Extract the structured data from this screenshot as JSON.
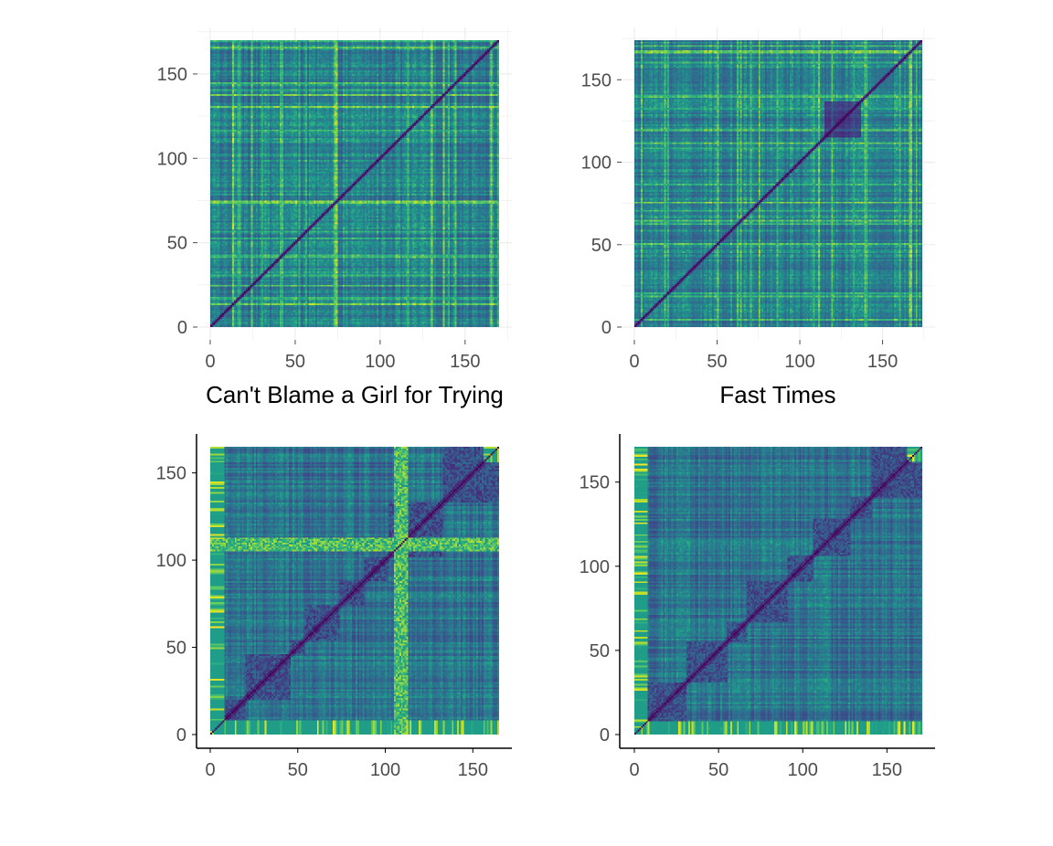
{
  "chart_data": [
    {
      "type": "heatmap",
      "title": "",
      "xlabel": "Can't Blame a Girl for Trying",
      "ylabel": "",
      "n": 170,
      "xlim": [
        0,
        170
      ],
      "ylim": [
        0,
        170
      ],
      "x_ticks": [
        0,
        50,
        100,
        150
      ],
      "y_ticks": [
        0,
        50,
        100,
        150
      ],
      "grid": true,
      "axis_lines": false,
      "colormap": "viridis",
      "texture": "fine"
    },
    {
      "type": "heatmap",
      "title": "",
      "xlabel": "Fast Times",
      "ylabel": "",
      "n": 174,
      "xlim": [
        0,
        174
      ],
      "ylim": [
        0,
        174
      ],
      "x_ticks": [
        0,
        50,
        100,
        150
      ],
      "y_ticks": [
        0,
        50,
        100,
        150
      ],
      "grid": true,
      "axis_lines": false,
      "colormap": "viridis",
      "texture": "fine"
    },
    {
      "type": "heatmap",
      "title": "",
      "xlabel": "",
      "ylabel": "",
      "n": 165,
      "xlim": [
        0,
        165
      ],
      "ylim": [
        0,
        165
      ],
      "x_ticks": [
        0,
        50,
        100,
        150
      ],
      "y_ticks": [
        0,
        50,
        100,
        150
      ],
      "grid": false,
      "axis_lines": true,
      "colormap": "viridis",
      "texture": "coarse"
    },
    {
      "type": "heatmap",
      "title": "",
      "xlabel": "",
      "ylabel": "",
      "n": 171,
      "xlim": [
        0,
        171
      ],
      "ylim": [
        0,
        171
      ],
      "x_ticks": [
        0,
        50,
        100,
        150
      ],
      "y_ticks": [
        0,
        50,
        100,
        150
      ],
      "grid": false,
      "axis_lines": true,
      "colormap": "viridis",
      "texture": "coarse"
    }
  ],
  "colors": {
    "viridis_low": "#440154",
    "viridis_mid": "#21918c",
    "viridis_high": "#fde725",
    "grid": "#ebebeb",
    "axis": "#000000",
    "tick_text": "#4d4d4d"
  }
}
